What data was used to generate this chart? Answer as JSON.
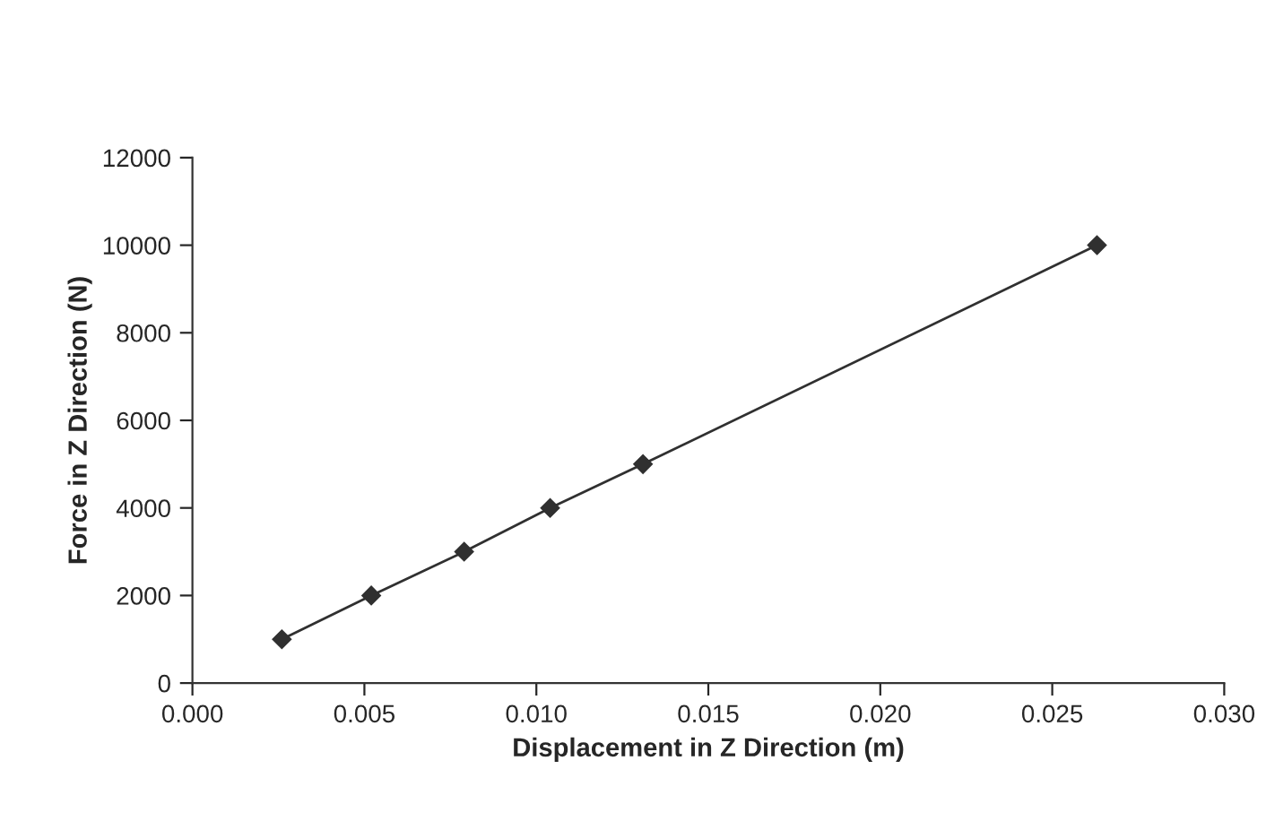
{
  "chart_data": {
    "type": "line",
    "xlabel": "Displacement in Z Direction (m)",
    "ylabel": "Force in Z Direction (N)",
    "series": [
      {
        "color": "#303030",
        "x": [
          0.0026,
          0.0052,
          0.0079,
          0.0104,
          0.0131,
          0.0263
        ],
        "values": [
          1000,
          2000,
          3000,
          4000,
          5000,
          10000
        ]
      }
    ],
    "xlim": [
      0,
      0.03
    ],
    "xticks": [
      {
        "value": 0,
        "label": "0.000"
      },
      {
        "value": 0.005,
        "label": "0.005"
      },
      {
        "value": 0.01,
        "label": "0.010"
      },
      {
        "value": 0.015,
        "label": "0.015"
      },
      {
        "value": 0.02,
        "label": "0.020"
      },
      {
        "value": 0.025,
        "label": "0.025"
      },
      {
        "value": 0.03,
        "label": "0.030"
      }
    ],
    "ylim": [
      0,
      12000
    ],
    "yticks": [
      0,
      2000,
      4000,
      6000,
      8000,
      10000,
      12000
    ],
    "marker": "diamond",
    "line_style": "solid",
    "grid": false,
    "legend": false
  }
}
